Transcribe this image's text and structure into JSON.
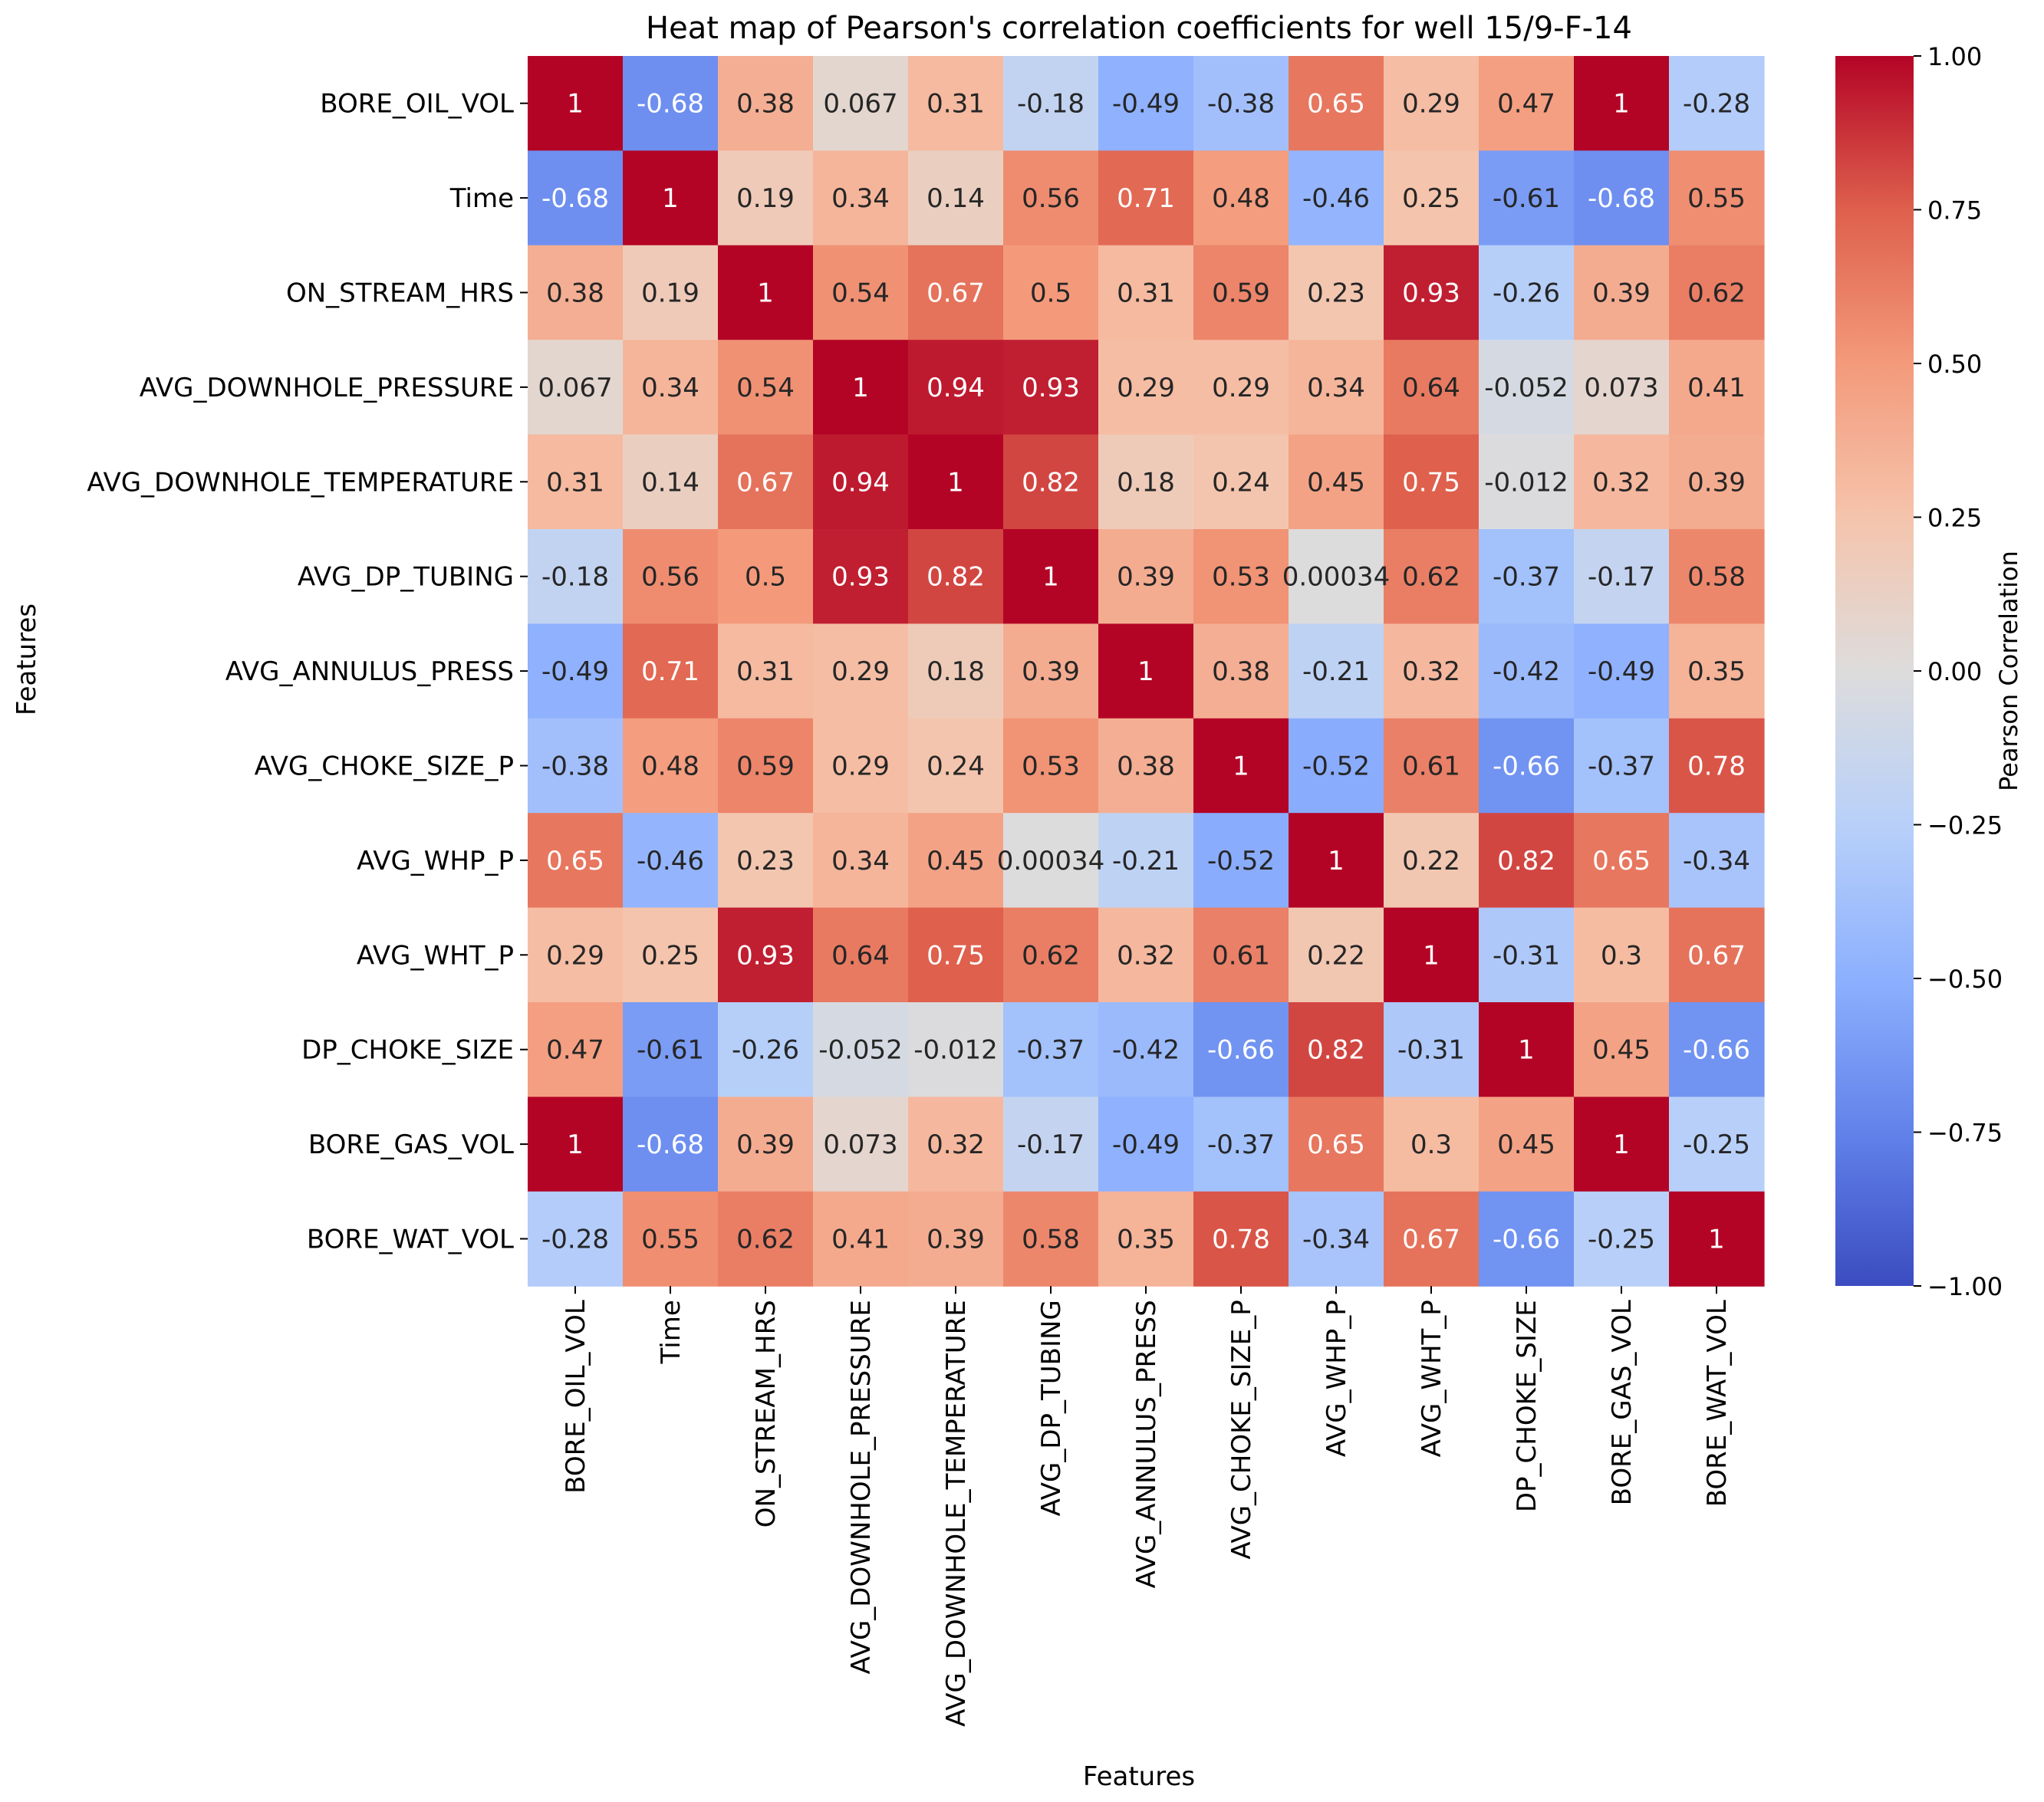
{
  "chart_data": {
    "type": "heatmap",
    "title": "Heat map of Pearson's correlation coefficients for well 15/9-F-14",
    "xlabel": "Features",
    "ylabel": "Features",
    "colorbar_label": "Pearson Correlation",
    "vmin": -1.0,
    "vmax": 1.0,
    "colorbar_ticks": [
      "1.00",
      "0.75",
      "0.50",
      "0.25",
      "0.00",
      "−0.25",
      "−0.50",
      "−0.75",
      "−1.00"
    ],
    "colorbar_tick_values": [
      1.0,
      0.75,
      0.5,
      0.25,
      0.0,
      -0.25,
      -0.5,
      -0.75,
      -1.0
    ],
    "labels": [
      "BORE_OIL_VOL",
      "Time",
      "ON_STREAM_HRS",
      "AVG_DOWNHOLE_PRESSURE",
      "AVG_DOWNHOLE_TEMPERATURE",
      "AVG_DP_TUBING",
      "AVG_ANNULUS_PRESS",
      "AVG_CHOKE_SIZE_P",
      "AVG_WHP_P",
      "AVG_WHT_P",
      "DP_CHOKE_SIZE",
      "BORE_GAS_VOL",
      "BORE_WAT_VOL"
    ],
    "values": [
      [
        1,
        -0.68,
        0.38,
        0.067,
        0.31,
        -0.18,
        -0.49,
        -0.38,
        0.65,
        0.29,
        0.47,
        1,
        -0.28
      ],
      [
        -0.68,
        1,
        0.19,
        0.34,
        0.14,
        0.56,
        0.71,
        0.48,
        -0.46,
        0.25,
        -0.61,
        -0.68,
        0.55
      ],
      [
        0.38,
        0.19,
        1,
        0.54,
        0.67,
        0.5,
        0.31,
        0.59,
        0.23,
        0.93,
        -0.26,
        0.39,
        0.62
      ],
      [
        0.067,
        0.34,
        0.54,
        1,
        0.94,
        0.93,
        0.29,
        0.29,
        0.34,
        0.64,
        -0.052,
        0.073,
        0.41
      ],
      [
        0.31,
        0.14,
        0.67,
        0.94,
        1,
        0.82,
        0.18,
        0.24,
        0.45,
        0.75,
        -0.012,
        0.32,
        0.39
      ],
      [
        -0.18,
        0.56,
        0.5,
        0.93,
        0.82,
        1,
        0.39,
        0.53,
        0.00034,
        0.62,
        -0.37,
        -0.17,
        0.58
      ],
      [
        -0.49,
        0.71,
        0.31,
        0.29,
        0.18,
        0.39,
        1,
        0.38,
        -0.21,
        0.32,
        -0.42,
        -0.49,
        0.35
      ],
      [
        -0.38,
        0.48,
        0.59,
        0.29,
        0.24,
        0.53,
        0.38,
        1,
        -0.52,
        0.61,
        -0.66,
        -0.37,
        0.78
      ],
      [
        0.65,
        -0.46,
        0.23,
        0.34,
        0.45,
        0.00034,
        -0.21,
        -0.52,
        1,
        0.22,
        0.82,
        0.65,
        -0.34
      ],
      [
        0.29,
        0.25,
        0.93,
        0.64,
        0.75,
        0.62,
        0.32,
        0.61,
        0.22,
        1,
        -0.31,
        0.3,
        0.67
      ],
      [
        0.47,
        -0.61,
        -0.26,
        -0.052,
        -0.012,
        -0.37,
        -0.42,
        -0.66,
        0.82,
        -0.31,
        1,
        0.45,
        -0.66
      ],
      [
        1,
        -0.68,
        0.39,
        0.073,
        0.32,
        -0.17,
        -0.49,
        -0.37,
        0.65,
        0.3,
        0.45,
        1,
        -0.25
      ],
      [
        -0.28,
        0.55,
        0.62,
        0.41,
        0.39,
        0.58,
        0.35,
        0.78,
        -0.34,
        0.67,
        -0.66,
        -0.25,
        1
      ]
    ],
    "annotations": [
      [
        "1",
        "-0.68",
        "0.38",
        "0.067",
        "0.31",
        "-0.18",
        "-0.49",
        "-0.38",
        "0.65",
        "0.29",
        "0.47",
        "1",
        "-0.28"
      ],
      [
        "-0.68",
        "1",
        "0.19",
        "0.34",
        "0.14",
        "0.56",
        "0.71",
        "0.48",
        "-0.46",
        "0.25",
        "-0.61",
        "-0.68",
        "0.55"
      ],
      [
        "0.38",
        "0.19",
        "1",
        "0.54",
        "0.67",
        "0.5",
        "0.31",
        "0.59",
        "0.23",
        "0.93",
        "-0.26",
        "0.39",
        "0.62"
      ],
      [
        "0.067",
        "0.34",
        "0.54",
        "1",
        "0.94",
        "0.93",
        "0.29",
        "0.29",
        "0.34",
        "0.64",
        "-0.052",
        "0.073",
        "0.41"
      ],
      [
        "0.31",
        "0.14",
        "0.67",
        "0.94",
        "1",
        "0.82",
        "0.18",
        "0.24",
        "0.45",
        "0.75",
        "-0.012",
        "0.32",
        "0.39"
      ],
      [
        "-0.18",
        "0.56",
        "0.5",
        "0.93",
        "0.82",
        "1",
        "0.39",
        "0.53",
        "0.00034",
        "0.62",
        "-0.37",
        "-0.17",
        "0.58"
      ],
      [
        "-0.49",
        "0.71",
        "0.31",
        "0.29",
        "0.18",
        "0.39",
        "1",
        "0.38",
        "-0.21",
        "0.32",
        "-0.42",
        "-0.49",
        "0.35"
      ],
      [
        "-0.38",
        "0.48",
        "0.59",
        "0.29",
        "0.24",
        "0.53",
        "0.38",
        "1",
        "-0.52",
        "0.61",
        "-0.66",
        "-0.37",
        "0.78"
      ],
      [
        "0.65",
        "-0.46",
        "0.23",
        "0.34",
        "0.45",
        "0.00034",
        "-0.21",
        "-0.52",
        "1",
        "0.22",
        "0.82",
        "0.65",
        "-0.34"
      ],
      [
        "0.29",
        "0.25",
        "0.93",
        "0.64",
        "0.75",
        "0.62",
        "0.32",
        "0.61",
        "0.22",
        "1",
        "-0.31",
        "0.3",
        "0.67"
      ],
      [
        "0.47",
        "-0.61",
        "-0.26",
        "-0.052",
        "-0.012",
        "-0.37",
        "-0.42",
        "-0.66",
        "0.82",
        "-0.31",
        "1",
        "0.45",
        "-0.66"
      ],
      [
        "1",
        "-0.68",
        "0.39",
        "0.073",
        "0.32",
        "-0.17",
        "-0.49",
        "-0.37",
        "0.65",
        "0.3",
        "0.45",
        "1",
        "-0.25"
      ],
      [
        "-0.28",
        "0.55",
        "0.62",
        "0.41",
        "0.39",
        "0.58",
        "0.35",
        "0.78",
        "-0.34",
        "0.67",
        "-0.66",
        "-0.25",
        "1"
      ]
    ],
    "colormap": "coolwarm",
    "colormap_stops": [
      "#3b4cc0",
      "#6282ea",
      "#8db0fe",
      "#b8d0f9",
      "#dddcdc",
      "#f5c4ac",
      "#f49a7b",
      "#de604d",
      "#b40426"
    ]
  }
}
